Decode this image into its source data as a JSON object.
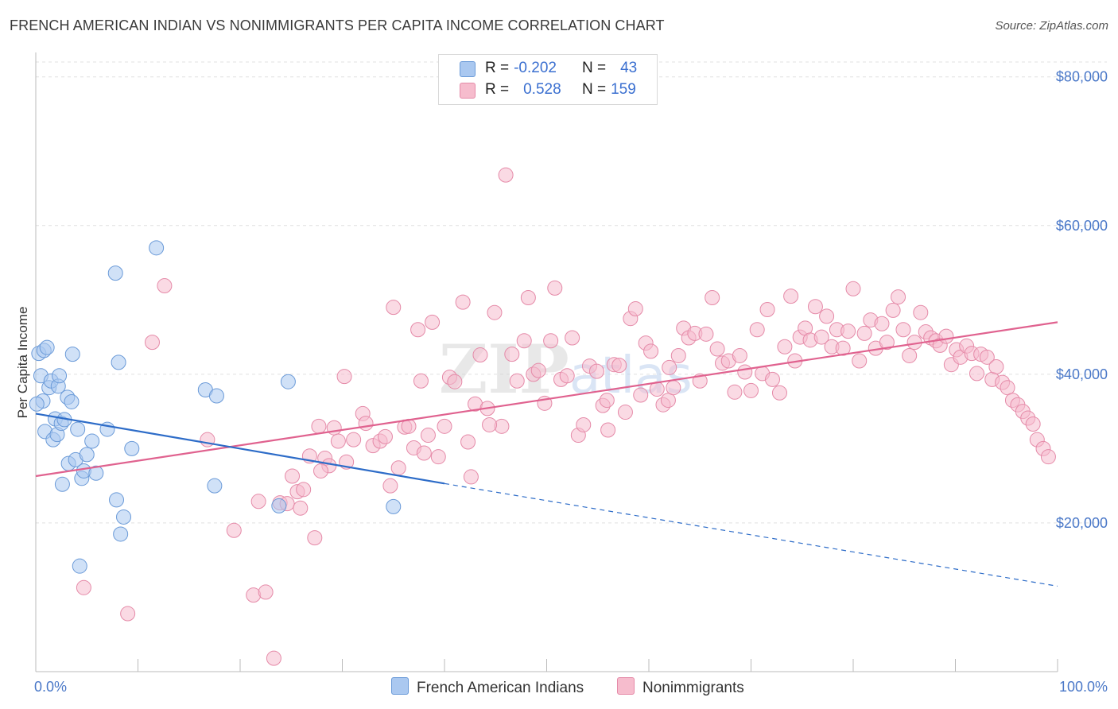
{
  "header": {
    "title": "FRENCH AMERICAN INDIAN VS NONIMMIGRANTS PER CAPITA INCOME CORRELATION CHART",
    "source": "Source: ZipAtlas.com"
  },
  "legend": {
    "series": [
      {
        "r_label": "R =",
        "r_value": "-0.202",
        "n_label": "N =",
        "n_value": "43"
      },
      {
        "r_label": "R =",
        "r_value": "0.528",
        "n_label": "N =",
        "n_value": "159"
      }
    ]
  },
  "watermark": {
    "zip": "ZIP",
    "atlas": "atlas"
  },
  "colors": {
    "blue_fill": "#aac8f0",
    "blue_stroke": "#6a9ad8",
    "blue_line": "#2d6cc8",
    "pink_fill": "#f6bccd",
    "pink_stroke": "#e58aa8",
    "pink_line": "#e0628f",
    "tick_text": "#4a78c8",
    "grid": "#e0e0e0"
  },
  "chart_data": {
    "type": "scatter",
    "title": "FRENCH AMERICAN INDIAN VS NONIMMIGRANTS PER CAPITA INCOME CORRELATION CHART",
    "ylabel": "Per Capita Income",
    "xlabel": "",
    "xlim": [
      0,
      100
    ],
    "ylim": [
      0,
      82000
    ],
    "x_tick_labels": [
      "0.0%",
      "100.0%"
    ],
    "y_ticks": [
      20000,
      40000,
      60000,
      80000
    ],
    "y_tick_labels": [
      "$20,000",
      "$40,000",
      "$60,000",
      "$80,000"
    ],
    "grid": true,
    "legend_position": "top-center",
    "series": [
      {
        "name": "French American Indians",
        "color": "#aac8f0",
        "trend": {
          "x0": 0,
          "y0": 34700,
          "x1": 40,
          "y1": 25300,
          "dashed_to_x": 100,
          "dashed_to_y": 11500
        },
        "points": [
          [
            0.3,
            42800
          ],
          [
            0.5,
            39800
          ],
          [
            0.7,
            36400
          ],
          [
            0.8,
            43200
          ],
          [
            0.9,
            32300
          ],
          [
            1.1,
            43600
          ],
          [
            1.3,
            38200
          ],
          [
            1.5,
            39100
          ],
          [
            1.7,
            31200
          ],
          [
            1.9,
            34000
          ],
          [
            2.1,
            31900
          ],
          [
            2.2,
            38400
          ],
          [
            2.3,
            39800
          ],
          [
            2.5,
            33400
          ],
          [
            2.6,
            25200
          ],
          [
            2.8,
            33900
          ],
          [
            3.1,
            36900
          ],
          [
            3.2,
            28000
          ],
          [
            3.5,
            36300
          ],
          [
            3.6,
            42700
          ],
          [
            3.9,
            28500
          ],
          [
            4.1,
            32600
          ],
          [
            4.3,
            14200
          ],
          [
            4.5,
            26000
          ],
          [
            4.7,
            27000
          ],
          [
            5.0,
            29200
          ],
          [
            5.5,
            31000
          ],
          [
            5.9,
            26700
          ],
          [
            7.0,
            32600
          ],
          [
            7.8,
            53600
          ],
          [
            7.9,
            23100
          ],
          [
            8.1,
            41600
          ],
          [
            8.3,
            18500
          ],
          [
            8.6,
            20800
          ],
          [
            9.4,
            30000
          ],
          [
            11.8,
            57000
          ],
          [
            16.6,
            37900
          ],
          [
            17.5,
            25000
          ],
          [
            17.7,
            37100
          ],
          [
            23.8,
            22300
          ],
          [
            24.7,
            39000
          ],
          [
            35.0,
            22200
          ],
          [
            0.1,
            36000
          ]
        ]
      },
      {
        "name": "Nonimmigrants",
        "color": "#f6bccd",
        "trend": {
          "x0": 0,
          "y0": 26300,
          "x1": 100,
          "y1": 47000
        },
        "points": [
          [
            4.7,
            11300
          ],
          [
            9.0,
            7800
          ],
          [
            11.4,
            44300
          ],
          [
            12.6,
            51900
          ],
          [
            16.8,
            31200
          ],
          [
            19.4,
            19000
          ],
          [
            21.3,
            10300
          ],
          [
            21.8,
            22900
          ],
          [
            22.5,
            10700
          ],
          [
            23.3,
            1800
          ],
          [
            23.9,
            22700
          ],
          [
            24.6,
            22600
          ],
          [
            25.1,
            26300
          ],
          [
            25.6,
            24200
          ],
          [
            25.9,
            22000
          ],
          [
            26.2,
            24500
          ],
          [
            26.8,
            29000
          ],
          [
            27.3,
            18000
          ],
          [
            27.7,
            33000
          ],
          [
            28.3,
            28700
          ],
          [
            28.7,
            27700
          ],
          [
            29.2,
            32800
          ],
          [
            29.6,
            31000
          ],
          [
            30.2,
            39700
          ],
          [
            30.4,
            28200
          ],
          [
            31.1,
            31200
          ],
          [
            32.0,
            34700
          ],
          [
            32.3,
            33400
          ],
          [
            33.0,
            30400
          ],
          [
            33.7,
            31000
          ],
          [
            34.2,
            31600
          ],
          [
            34.7,
            25000
          ],
          [
            35.0,
            49000
          ],
          [
            35.5,
            27400
          ],
          [
            36.1,
            32900
          ],
          [
            36.5,
            33000
          ],
          [
            37.0,
            30100
          ],
          [
            37.4,
            46000
          ],
          [
            37.7,
            39100
          ],
          [
            38.0,
            29400
          ],
          [
            38.4,
            31800
          ],
          [
            38.8,
            47000
          ],
          [
            39.4,
            28900
          ],
          [
            40.0,
            33000
          ],
          [
            40.5,
            39600
          ],
          [
            41.0,
            39000
          ],
          [
            41.8,
            49700
          ],
          [
            42.3,
            30900
          ],
          [
            42.6,
            26200
          ],
          [
            43.0,
            36000
          ],
          [
            43.5,
            42600
          ],
          [
            44.2,
            35400
          ],
          [
            44.9,
            48300
          ],
          [
            45.6,
            33000
          ],
          [
            46.0,
            66800
          ],
          [
            46.6,
            42700
          ],
          [
            47.1,
            39100
          ],
          [
            47.8,
            44500
          ],
          [
            48.2,
            50300
          ],
          [
            48.7,
            40000
          ],
          [
            49.2,
            40500
          ],
          [
            49.8,
            36100
          ],
          [
            50.4,
            44500
          ],
          [
            50.8,
            51600
          ],
          [
            51.4,
            39300
          ],
          [
            52.0,
            39800
          ],
          [
            52.5,
            44900
          ],
          [
            53.1,
            31800
          ],
          [
            53.6,
            33200
          ],
          [
            54.2,
            41100
          ],
          [
            54.9,
            40400
          ],
          [
            55.5,
            35800
          ],
          [
            56.0,
            32500
          ],
          [
            56.6,
            41300
          ],
          [
            57.1,
            41200
          ],
          [
            57.7,
            34900
          ],
          [
            58.2,
            47500
          ],
          [
            58.7,
            48800
          ],
          [
            59.2,
            37200
          ],
          [
            59.7,
            44200
          ],
          [
            60.2,
            43100
          ],
          [
            60.8,
            38000
          ],
          [
            61.4,
            35900
          ],
          [
            61.9,
            36500
          ],
          [
            62.4,
            38200
          ],
          [
            62.9,
            42500
          ],
          [
            63.4,
            46200
          ],
          [
            63.9,
            44900
          ],
          [
            64.5,
            45500
          ],
          [
            65.0,
            39100
          ],
          [
            65.6,
            45400
          ],
          [
            66.2,
            50300
          ],
          [
            66.7,
            43400
          ],
          [
            67.2,
            41500
          ],
          [
            67.8,
            41800
          ],
          [
            68.4,
            37600
          ],
          [
            68.9,
            42500
          ],
          [
            69.4,
            40300
          ],
          [
            70.0,
            37800
          ],
          [
            70.6,
            46000
          ],
          [
            71.1,
            40100
          ],
          [
            71.6,
            48700
          ],
          [
            72.1,
            39300
          ],
          [
            72.8,
            37500
          ],
          [
            73.3,
            43700
          ],
          [
            73.9,
            50500
          ],
          [
            74.3,
            41800
          ],
          [
            74.8,
            45000
          ],
          [
            75.3,
            46200
          ],
          [
            75.8,
            44600
          ],
          [
            76.3,
            49100
          ],
          [
            76.9,
            45000
          ],
          [
            77.4,
            47800
          ],
          [
            77.9,
            43700
          ],
          [
            78.4,
            46000
          ],
          [
            79.0,
            43500
          ],
          [
            79.5,
            45800
          ],
          [
            80.0,
            51500
          ],
          [
            80.6,
            41800
          ],
          [
            81.1,
            45500
          ],
          [
            81.7,
            47300
          ],
          [
            82.2,
            43500
          ],
          [
            82.8,
            46800
          ],
          [
            83.3,
            44300
          ],
          [
            83.9,
            48600
          ],
          [
            84.4,
            50400
          ],
          [
            84.9,
            46000
          ],
          [
            85.5,
            42500
          ],
          [
            86.0,
            44300
          ],
          [
            86.6,
            48300
          ],
          [
            87.1,
            45700
          ],
          [
            87.6,
            44900
          ],
          [
            88.1,
            44500
          ],
          [
            88.5,
            43900
          ],
          [
            89.1,
            45100
          ],
          [
            89.6,
            41300
          ],
          [
            90.1,
            43300
          ],
          [
            90.5,
            42300
          ],
          [
            91.1,
            43800
          ],
          [
            91.6,
            42800
          ],
          [
            92.1,
            40100
          ],
          [
            92.5,
            42700
          ],
          [
            93.1,
            42300
          ],
          [
            93.6,
            39300
          ],
          [
            94.0,
            41000
          ],
          [
            94.6,
            38900
          ],
          [
            95.1,
            38200
          ],
          [
            95.6,
            36500
          ],
          [
            96.1,
            35900
          ],
          [
            96.6,
            35000
          ],
          [
            97.1,
            34100
          ],
          [
            97.6,
            33300
          ],
          [
            98.0,
            31200
          ],
          [
            98.6,
            30000
          ],
          [
            99.1,
            28900
          ],
          [
            55.9,
            36500
          ],
          [
            62.0,
            40900
          ],
          [
            44.4,
            33200
          ],
          [
            27.9,
            27000
          ]
        ]
      }
    ]
  },
  "bottom_legend": {
    "items": [
      {
        "label": "French American Indians"
      },
      {
        "label": "Nonimmigrants"
      }
    ]
  }
}
